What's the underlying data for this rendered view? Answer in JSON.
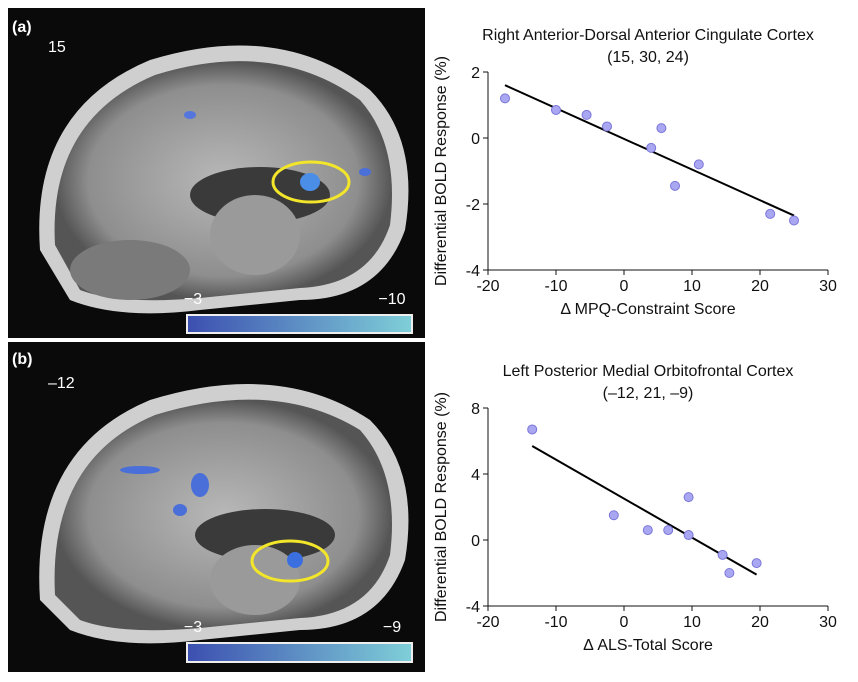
{
  "panels": [
    {
      "label": "(a)",
      "slice": "15",
      "colorbar_min": "−3",
      "colorbar_max": "−10"
    },
    {
      "label": "(b)",
      "slice": "–12",
      "colorbar_min": "−3",
      "colorbar_max": "−9"
    }
  ],
  "chart_data": [
    {
      "type": "scatter",
      "title": "Right Anterior-Dorsal Anterior Cingulate Cortex",
      "subtitle": "(15, 30, 24)",
      "x_label": "Δ MPQ-Constraint Score",
      "y_label": "Differential BOLD Response (%)",
      "x": [
        -17.5,
        -10,
        -5.5,
        -2.5,
        4,
        5.5,
        7.5,
        11,
        21.5,
        25
      ],
      "values": [
        1.2,
        0.85,
        0.7,
        0.35,
        -0.3,
        0.3,
        -1.45,
        -0.8,
        -2.3,
        -2.5
      ],
      "color": "#aaa7f2",
      "fit": {
        "x": [
          -17.5,
          25
        ],
        "y": [
          1.6,
          -2.35
        ]
      },
      "xlim": [
        -20,
        30
      ],
      "xticks": [
        -20,
        -10,
        0,
        10,
        20,
        30
      ],
      "ylim": [
        -4,
        2
      ],
      "yticks": [
        -4,
        -2,
        0,
        2
      ]
    },
    {
      "type": "scatter",
      "title": "Left Posterior Medial Orbitofrontal Cortex",
      "subtitle": "(–12, 21, –9)",
      "x_label": "Δ ALS-Total Score",
      "y_label": "Differential BOLD Response (%)",
      "x": [
        -13.5,
        -1.5,
        3.5,
        6.5,
        9.5,
        9.5,
        14.5,
        15.5,
        19.5
      ],
      "values": [
        6.7,
        1.5,
        0.6,
        0.6,
        2.6,
        0.3,
        -0.9,
        -2.0,
        -1.4
      ],
      "color": "#aaa7f2",
      "fit": {
        "x": [
          -13.5,
          19.5
        ],
        "y": [
          5.7,
          -2.1
        ]
      },
      "xlim": [
        -20,
        30
      ],
      "xticks": [
        -20,
        -10,
        0,
        10,
        20,
        30
      ],
      "ylim": [
        -4,
        8
      ],
      "yticks": [
        -4,
        0,
        4,
        8
      ]
    }
  ]
}
